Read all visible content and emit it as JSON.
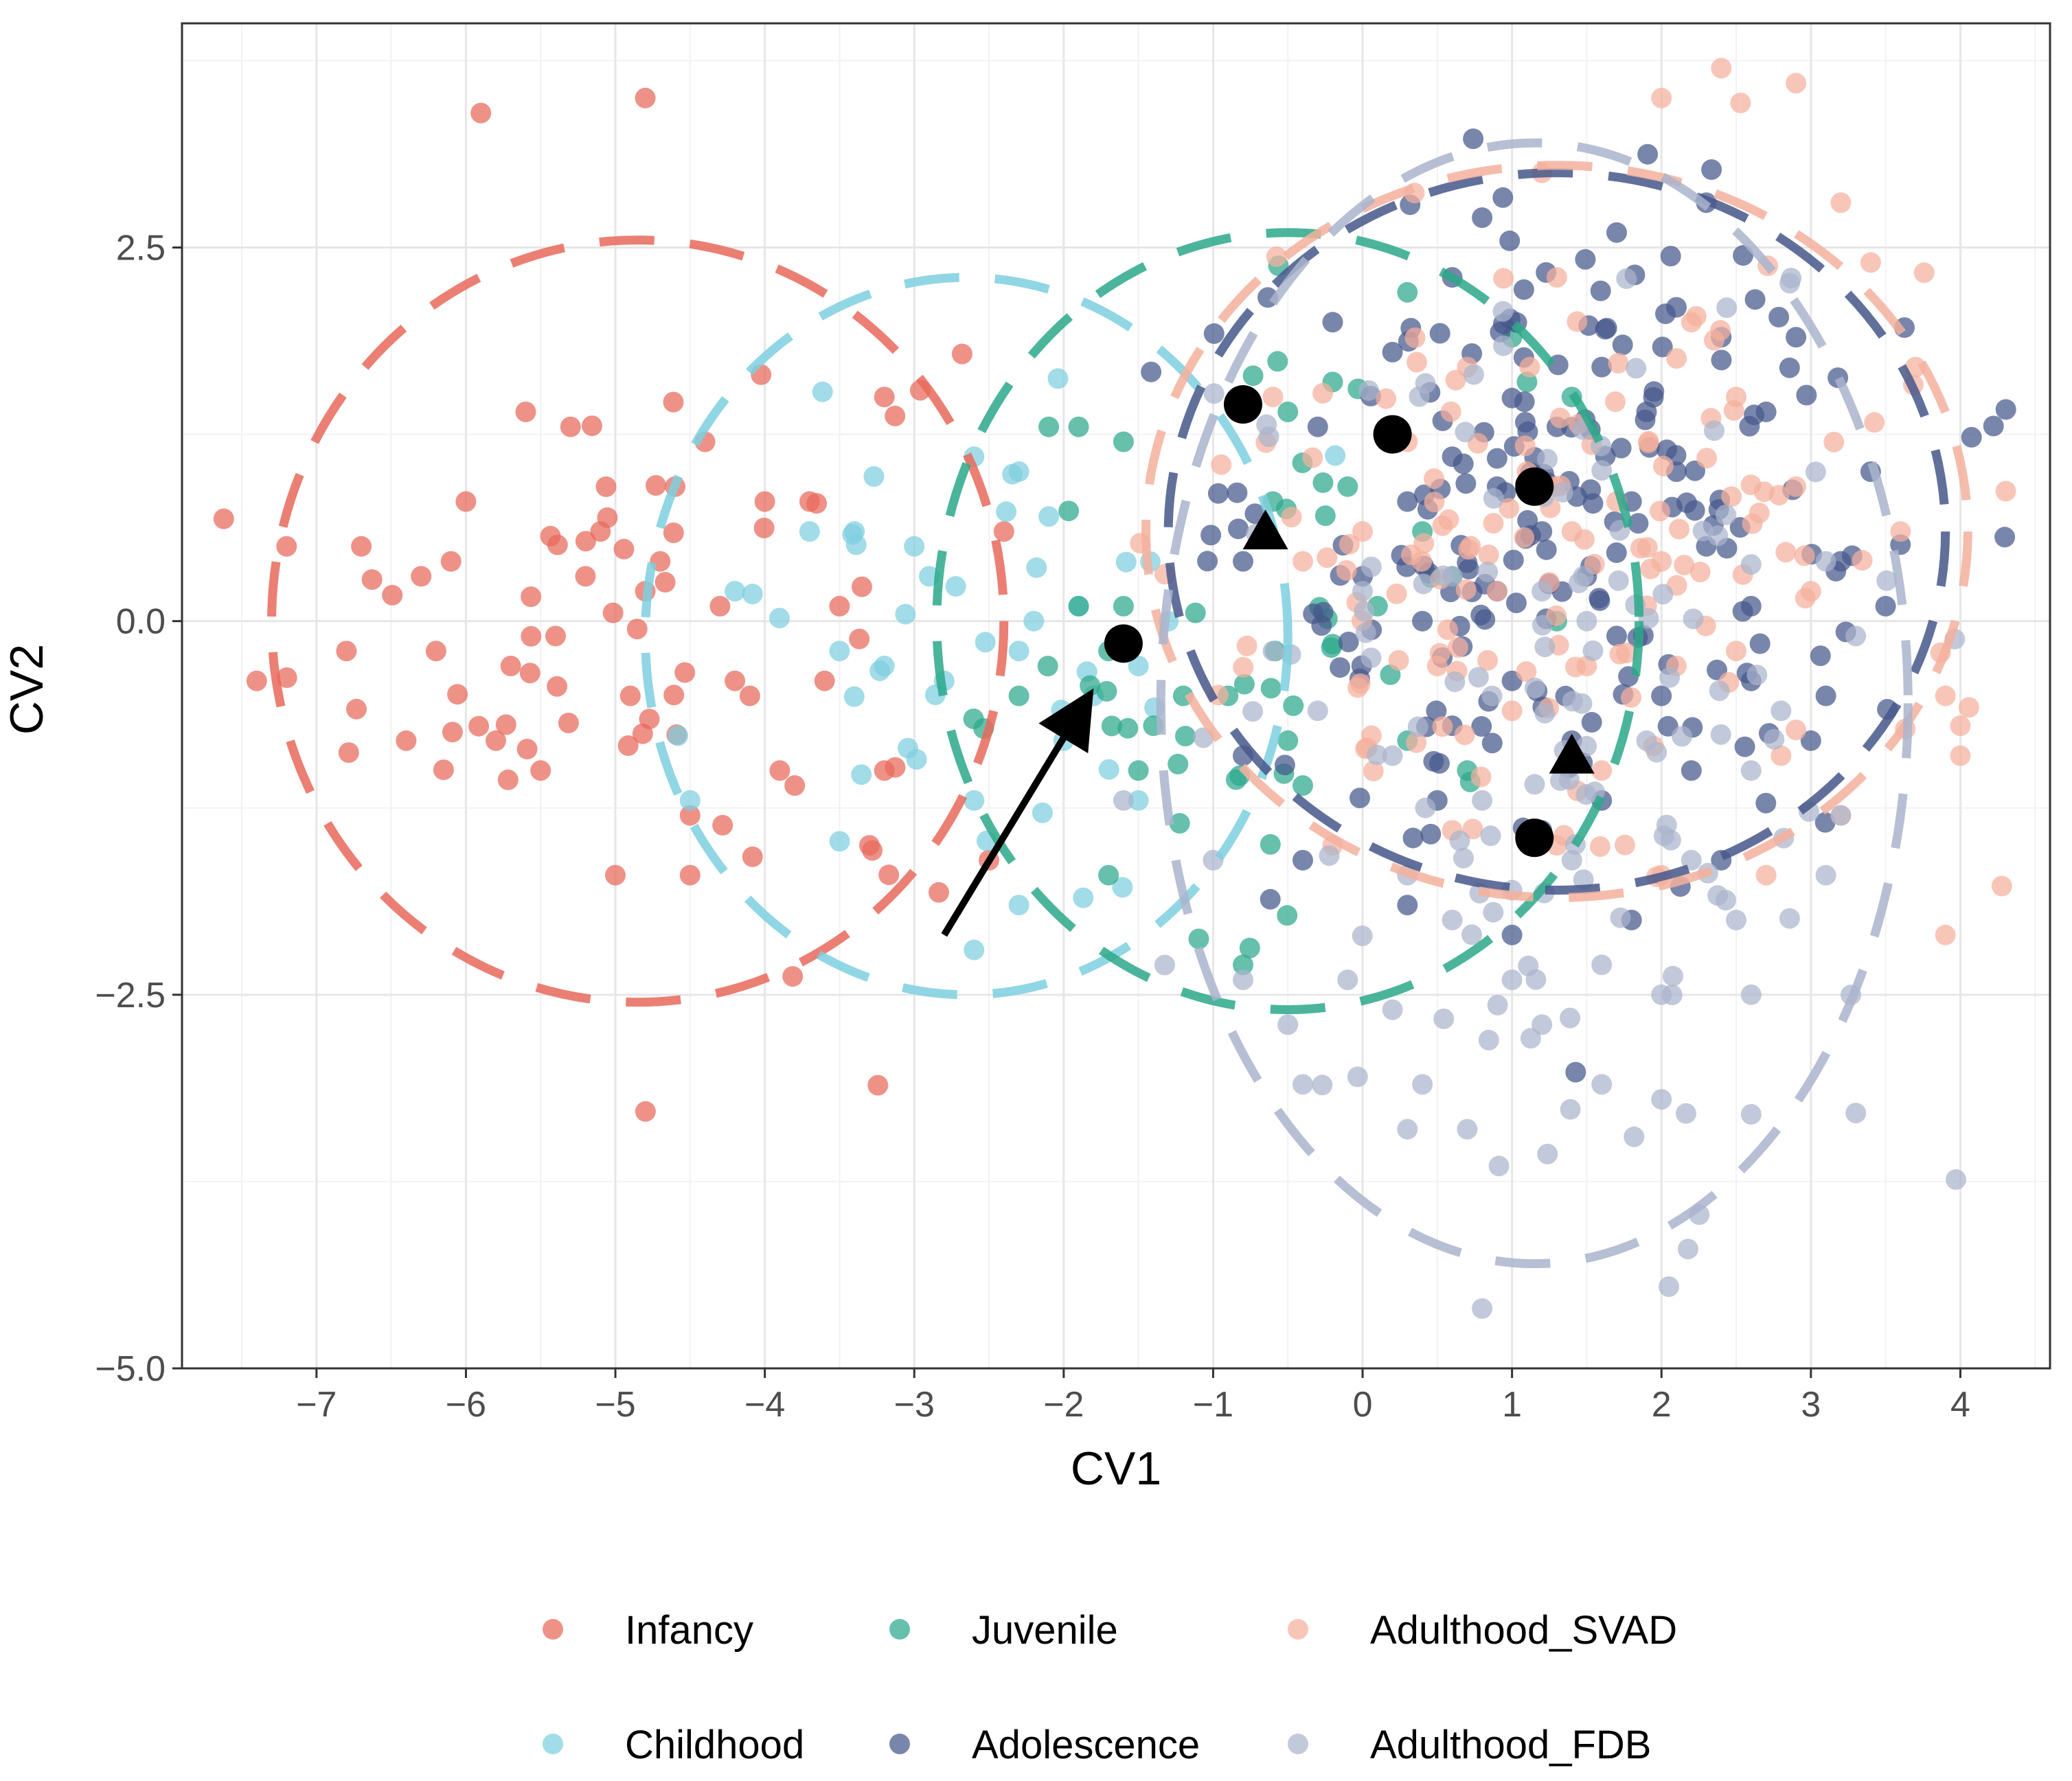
{
  "chart_data": {
    "type": "scatter",
    "xlabel": "CV1",
    "ylabel": "CV2",
    "xlim": [
      -7.9,
      4.6
    ],
    "ylim": [
      -5.0,
      4.0
    ],
    "x_ticks": [
      -7,
      -6,
      -5,
      -4,
      -3,
      -2,
      -1,
      0,
      1,
      2,
      3,
      4
    ],
    "x_tick_labels": [
      "−7",
      "−6",
      "−5",
      "−4",
      "−3",
      "−2",
      "−1",
      "0",
      "1",
      "2",
      "3",
      "4"
    ],
    "y_ticks": [
      -5.0,
      -2.5,
      0.0,
      2.5
    ],
    "y_tick_labels": [
      "−5.0",
      "−2.5",
      "0.0",
      "2.5"
    ],
    "grid": true,
    "legend_position": "bottom",
    "series": [
      {
        "name": "Infancy",
        "color": "#E8685A",
        "ellipse": {
          "cx": -4.85,
          "cy": 0.0,
          "rx": 2.45,
          "ry": 2.55
        },
        "n": 95,
        "points": [
          [
            -5.9,
            3.4
          ],
          [
            -4.8,
            3.5
          ],
          [
            -7.2,
            0.5
          ],
          [
            -7.4,
            -0.4
          ],
          [
            -6.3,
            0.3
          ],
          [
            -6.2,
            -0.2
          ],
          [
            -6.0,
            0.8
          ],
          [
            -5.6,
            1.4
          ],
          [
            -5.3,
            1.3
          ],
          [
            -5.7,
            -0.3
          ],
          [
            -5.5,
            -1.0
          ],
          [
            -5.0,
            -1.7
          ],
          [
            -4.0,
            0.8
          ],
          [
            -4.2,
            -0.4
          ],
          [
            -3.9,
            -1.0
          ],
          [
            -3.8,
            -1.1
          ],
          [
            -3.2,
            -1.0
          ],
          [
            -3.3,
            -1.5
          ],
          [
            -3.2,
            1.5
          ],
          [
            -4.5,
            -1.3
          ],
          [
            -4.5,
            -1.7
          ],
          [
            -6.4,
            -0.8
          ],
          [
            -6.7,
            0.5
          ],
          [
            -6.8,
            -0.2
          ],
          [
            -5.8,
            -0.8
          ],
          [
            -5.1,
            0.6
          ],
          [
            -4.7,
            0.4
          ],
          [
            -4.4,
            1.2
          ],
          [
            -4.3,
            0.1
          ],
          [
            -3.7,
            0.8
          ],
          [
            -3.5,
            0.1
          ],
          [
            -3.6,
            -0.4
          ],
          [
            -4.9,
            -0.5
          ],
          [
            -5.2,
            0.3
          ],
          [
            -6.1,
            0.4
          ],
          [
            -4.6,
            0.9
          ],
          [
            -5.4,
            -0.1
          ],
          [
            -4.8,
            0.2
          ],
          [
            -4.1,
            -0.5
          ],
          [
            -2.4,
            0.6
          ],
          [
            -2.5,
            -1.6
          ]
        ]
      },
      {
        "name": "Childhood",
        "color": "#7ECFDF",
        "ellipse": {
          "cx": -2.65,
          "cy": -0.1,
          "rx": 2.15,
          "ry": 2.4
        },
        "n": 55,
        "points": [
          [
            -2.6,
            1.1
          ],
          [
            -2.3,
            1.0
          ],
          [
            -2.1,
            0.7
          ],
          [
            -3.0,
            0.5
          ],
          [
            -3.7,
            0.6
          ],
          [
            -3.5,
            -0.2
          ],
          [
            -2.8,
            -0.4
          ],
          [
            -2.3,
            -0.2
          ],
          [
            -1.9,
            0.1
          ],
          [
            -1.8,
            -0.5
          ],
          [
            -2.6,
            -1.2
          ],
          [
            -2.3,
            -1.9
          ],
          [
            -1.5,
            -1.2
          ],
          [
            -1.5,
            -0.3
          ],
          [
            -1.3,
            0.0
          ],
          [
            -4.5,
            -1.2
          ],
          [
            -3.4,
            0.6
          ],
          [
            -2.9,
            0.3
          ],
          [
            -2.2,
            0.0
          ],
          [
            -3.2,
            -0.3
          ],
          [
            -2.0,
            -0.8
          ],
          [
            -2.6,
            -2.2
          ],
          [
            -4.2,
            0.2
          ]
        ]
      },
      {
        "name": "Juvenile",
        "color": "#2BA88A",
        "ellipse": {
          "cx": -0.5,
          "cy": 0.0,
          "rx": 2.35,
          "ry": 2.6
        },
        "n": 70,
        "points": [
          [
            -2.1,
            1.3
          ],
          [
            -1.9,
            1.3
          ],
          [
            -1.6,
            1.2
          ],
          [
            -0.8,
            1.4
          ],
          [
            -0.5,
            1.4
          ],
          [
            -0.2,
            1.6
          ],
          [
            0.3,
            2.2
          ],
          [
            1.0,
            1.9
          ],
          [
            1.1,
            1.6
          ],
          [
            1.4,
            1.5
          ],
          [
            -1.9,
            0.1
          ],
          [
            -1.6,
            0.1
          ],
          [
            -1.4,
            -0.7
          ],
          [
            -0.9,
            -0.5
          ],
          [
            -0.5,
            -0.8
          ],
          [
            -0.4,
            -1.1
          ],
          [
            0.3,
            -0.8
          ],
          [
            0.7,
            -1.0
          ],
          [
            -1.7,
            -1.7
          ],
          [
            -0.8,
            -2.3
          ],
          [
            -1.7,
            -0.2
          ],
          [
            -1.2,
            -0.5
          ],
          [
            0.1,
            0.1
          ],
          [
            0.4,
            0.6
          ],
          [
            1.3,
            0.0
          ],
          [
            -0.6,
            0.8
          ],
          [
            -1.5,
            -1.0
          ],
          [
            -2.3,
            -0.5
          ],
          [
            -0.1,
            0.9
          ],
          [
            0.6,
            0.3
          ]
        ]
      },
      {
        "name": "Adolescence",
        "color": "#45578A",
        "ellipse": {
          "cx": 1.3,
          "cy": 0.6,
          "rx": 2.6,
          "ry": 2.4
        },
        "n": 230,
        "points": [
          [
            0.8,
            2.7
          ],
          [
            1.7,
            2.6
          ],
          [
            2.3,
            2.8
          ],
          [
            2.4,
            1.9
          ],
          [
            2.7,
            1.4
          ],
          [
            3.2,
            0.4
          ],
          [
            3.4,
            1.0
          ],
          [
            3.5,
            0.1
          ],
          [
            3.0,
            -0.8
          ],
          [
            2.4,
            -1.6
          ],
          [
            1.8,
            -2.0
          ],
          [
            1.0,
            -2.1
          ],
          [
            0.3,
            -1.9
          ],
          [
            -0.4,
            -1.6
          ],
          [
            -0.8,
            -0.9
          ],
          [
            -0.8,
            0.4
          ],
          [
            -0.3,
            1.3
          ],
          [
            0.2,
            1.8
          ],
          [
            0.6,
            1.1
          ],
          [
            0.9,
            0.9
          ],
          [
            1.2,
            0.6
          ],
          [
            1.5,
            0.3
          ],
          [
            1.8,
            0.8
          ],
          [
            2.1,
            1.0
          ],
          [
            2.3,
            0.5
          ],
          [
            1.0,
            -0.4
          ],
          [
            0.6,
            -0.7
          ],
          [
            1.4,
            -0.8
          ],
          [
            2.0,
            -0.5
          ],
          [
            2.6,
            -0.4
          ],
          [
            1.2,
            -1.4
          ],
          [
            0.5,
            -1.2
          ],
          [
            0.0,
            0.3
          ],
          [
            0.4,
            0.0
          ],
          [
            1.7,
            -0.1
          ],
          [
            2.6,
            0.1
          ],
          [
            2.9,
            1.9
          ],
          [
            1.6,
            1.7
          ],
          [
            2.1,
            2.1
          ],
          [
            0.6,
            2.3
          ],
          [
            -0.2,
            2.0
          ],
          [
            0.9,
            0.2
          ],
          [
            1.3,
            1.3
          ],
          [
            2.2,
            -1.0
          ],
          [
            1.9,
            1.4
          ],
          [
            3.1,
            -0.5
          ],
          [
            0.3,
            0.8
          ],
          [
            1.6,
            -1.2
          ]
        ]
      },
      {
        "name": "Adulthood_SVAD",
        "color": "#F5B09C",
        "ellipse": {
          "cx": 1.3,
          "cy": 0.6,
          "rx": 2.75,
          "ry": 2.45
        },
        "n": 170,
        "points": [
          [
            2.0,
            3.5
          ],
          [
            2.4,
            3.7
          ],
          [
            2.9,
            3.6
          ],
          [
            1.2,
            3.0
          ],
          [
            3.2,
            2.8
          ],
          [
            3.4,
            2.4
          ],
          [
            3.7,
            1.7
          ],
          [
            3.6,
            0.6
          ],
          [
            3.9,
            -0.5
          ],
          [
            4.0,
            -0.7
          ],
          [
            4.0,
            -0.9
          ],
          [
            3.9,
            -2.1
          ],
          [
            3.2,
            -1.3
          ],
          [
            2.7,
            -1.7
          ],
          [
            2.0,
            -1.7
          ],
          [
            1.3,
            -1.5
          ],
          [
            0.6,
            -1.4
          ],
          [
            -0.2,
            -1.5
          ],
          [
            -0.4,
            0.4
          ],
          [
            -0.6,
            1.5
          ],
          [
            0.0,
            0.6
          ],
          [
            0.7,
            1.7
          ],
          [
            1.3,
            2.3
          ],
          [
            2.2,
            2.0
          ],
          [
            2.5,
            1.5
          ],
          [
            2.9,
            0.9
          ],
          [
            2.0,
            0.4
          ],
          [
            1.5,
            -0.3
          ],
          [
            1.0,
            -0.6
          ],
          [
            0.5,
            -0.3
          ],
          [
            0.9,
            0.2
          ],
          [
            1.7,
            0.8
          ],
          [
            2.5,
            -0.2
          ],
          [
            2.8,
            -0.9
          ],
          [
            1.6,
            -1.0
          ],
          [
            0.3,
            1.2
          ],
          [
            1.1,
            1.0
          ],
          [
            3.0,
            0.2
          ],
          [
            2.1,
            -0.3
          ],
          [
            1.4,
            0.6
          ]
        ]
      },
      {
        "name": "Adulthood_FDB",
        "color": "#AAB4CC",
        "ellipse": {
          "cx": 1.15,
          "cy": -0.55,
          "rx": 2.5,
          "ry": 3.75
        },
        "n": 160,
        "points": [
          [
            0.8,
            -4.6
          ],
          [
            0.7,
            -3.4
          ],
          [
            0.3,
            -3.4
          ],
          [
            -0.4,
            -3.1
          ],
          [
            0.4,
            -3.1
          ],
          [
            1.6,
            -3.1
          ],
          [
            2.0,
            -3.2
          ],
          [
            2.6,
            -3.3
          ],
          [
            3.1,
            -1.7
          ],
          [
            3.2,
            -1.3
          ],
          [
            3.3,
            -0.1
          ],
          [
            3.1,
            0.4
          ],
          [
            -1.6,
            -1.2
          ],
          [
            -1.0,
            -1.6
          ],
          [
            -0.8,
            -2.4
          ],
          [
            -0.5,
            -2.7
          ],
          [
            -0.1,
            -2.4
          ],
          [
            0.2,
            -2.6
          ],
          [
            1.2,
            -2.7
          ],
          [
            1.0,
            -2.4
          ],
          [
            1.6,
            -2.3
          ],
          [
            2.0,
            -2.5
          ],
          [
            2.6,
            -2.5
          ],
          [
            2.5,
            -2.0
          ],
          [
            1.4,
            -1.6
          ],
          [
            0.8,
            -1.2
          ],
          [
            0.2,
            -0.9
          ],
          [
            -0.3,
            -0.6
          ],
          [
            0.0,
            0.2
          ],
          [
            0.6,
            0.3
          ],
          [
            1.2,
            0.2
          ],
          [
            1.9,
            -0.8
          ],
          [
            2.6,
            -1.0
          ],
          [
            2.8,
            -0.6
          ],
          [
            1.0,
            -1.8
          ],
          [
            0.3,
            -1.7
          ],
          [
            -0.6,
            -0.2
          ],
          [
            1.5,
            0.0
          ],
          [
            2.2,
            -1.6
          ],
          [
            0.6,
            -2.0
          ]
        ]
      }
    ],
    "annotations": {
      "centroid_circles": [
        [
          -0.8,
          1.45
        ],
        [
          0.2,
          1.25
        ],
        [
          1.15,
          0.9
        ],
        [
          -1.6,
          -0.15
        ],
        [
          1.15,
          -1.45
        ]
      ],
      "centroid_triangles": [
        [
          -0.65,
          0.6
        ],
        [
          1.4,
          -0.9
        ]
      ],
      "arrow": {
        "from": [
          -2.8,
          -2.1
        ],
        "to": [
          -1.8,
          -0.45
        ]
      }
    }
  }
}
